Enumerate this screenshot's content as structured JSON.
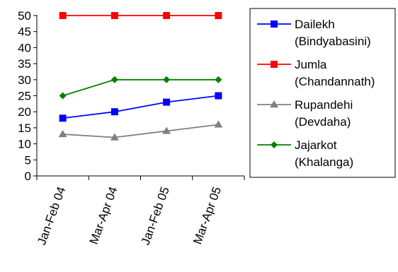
{
  "chart_data": {
    "type": "line",
    "categories": [
      "Jan-Feb 04",
      "Mar-Apr 04",
      "Jan-Feb 05",
      "Mar-Apr 05"
    ],
    "ylim": [
      0,
      50
    ],
    "yticks": [
      0,
      5,
      10,
      15,
      20,
      25,
      30,
      35,
      40,
      45,
      50
    ],
    "grid": false,
    "legend_position": "right",
    "series": [
      {
        "key": "dailekh",
        "name_line1": "Dailekh",
        "name_line2": "(Bindyabasini)",
        "color": "#0000ff",
        "marker": "square",
        "values": [
          18,
          20,
          23,
          25
        ]
      },
      {
        "key": "jumla",
        "name_line1": "Jumla",
        "name_line2": "(Chandannath)",
        "color": "#ff0000",
        "marker": "square",
        "values": [
          50,
          50,
          50,
          50
        ]
      },
      {
        "key": "rupandehi",
        "name_line1": "Rupandehi",
        "name_line2": "(Devdaha)",
        "color": "#808080",
        "marker": "triangle",
        "values": [
          13,
          12,
          14,
          16
        ]
      },
      {
        "key": "jajarkot",
        "name_line1": "Jajarkot",
        "name_line2": "(Khalanga)",
        "color": "#008000",
        "marker": "diamond",
        "values": [
          25,
          30,
          30,
          30
        ]
      }
    ]
  }
}
